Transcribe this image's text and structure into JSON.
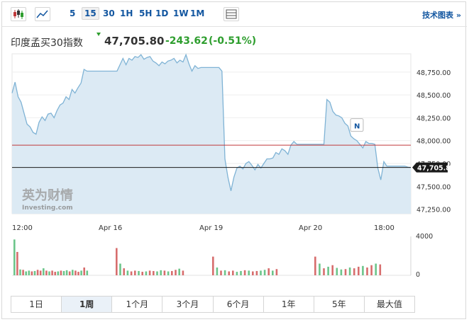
{
  "toolbar": {
    "icons": [
      "candlestick-icon",
      "line-chart-icon",
      "table-icon"
    ],
    "intervals": [
      "5",
      "15",
      "30",
      "1H",
      "5H",
      "1D",
      "1W",
      "1M"
    ],
    "active_interval": "15",
    "tech_link": "技术图表 »"
  },
  "header": {
    "name": "印度孟买30指数",
    "last": "47,705.80",
    "change": "-243.62",
    "change_pct": "(-0.51%)",
    "change_color": "#2e9e2e"
  },
  "ranges": [
    "1日",
    "1周",
    "1个月",
    "3个月",
    "6个月",
    "1年",
    "5年",
    "最大值"
  ],
  "active_range": "1周",
  "watermark": {
    "cn": "英为财情",
    "en": "Investing.com"
  },
  "colors": {
    "line": "#7fb3d5",
    "fill": "#dceaf4",
    "up_bar": "#6cc58a",
    "down_bar": "#d76d6d",
    "ref_line": "#c0393b",
    "price_tag": "#1a1a1a"
  },
  "chart_data": {
    "type": "area",
    "x_labels": [
      "12:00",
      "Apr 16",
      "Apr 19",
      "Apr 20",
      "18:00"
    ],
    "y_ticks": [
      "48,750.00",
      "48,500.00",
      "48,250.00",
      "48,000.00",
      "47,750.00",
      "47,500.00",
      "47,250.00"
    ],
    "ylim": [
      47200,
      48950
    ],
    "last_price": 47705.8,
    "last_price_label": "47,705.80",
    "ref_price": 47950,
    "event_marker": "N",
    "series": [
      {
        "values": [
          48520,
          48640,
          48480,
          48420,
          48300,
          48180,
          48150,
          48090,
          48070,
          48200,
          48260,
          48220,
          48290,
          48300,
          48250,
          48330,
          48390,
          48410,
          48480,
          48450,
          48560,
          48520,
          48580,
          48630,
          48780,
          48760,
          48760,
          48760,
          48760,
          48760,
          48760,
          48760,
          48760,
          48760,
          48760,
          48760,
          48830,
          48900,
          48830,
          48900,
          48880,
          48920,
          48910,
          48940,
          48890,
          48910,
          48920,
          48870,
          48850,
          48820,
          48860,
          48840,
          48870,
          48880,
          48900,
          48850,
          48880,
          48860,
          48940,
          48840,
          48760,
          48820,
          48790,
          48800,
          48800,
          48800,
          48800,
          48800,
          48800,
          48800,
          48760,
          47800,
          47600,
          47450,
          47600,
          47700,
          47720,
          47690,
          47750,
          47770,
          47730,
          47680,
          47740,
          47700,
          47750,
          47800,
          47800,
          47810,
          47870,
          47850,
          47910,
          47890,
          47850,
          47950,
          47990,
          47960,
          47960,
          47960,
          47960,
          47960,
          47960,
          47960,
          47960,
          47960,
          47960,
          48450,
          48420,
          48320,
          48280,
          48270,
          48250,
          48190,
          48160,
          48050,
          48020,
          48000,
          47960,
          47920,
          47990,
          47970,
          47970,
          47960,
          47700,
          47570,
          47770,
          47720,
          47720,
          47720,
          47720,
          47720,
          47720,
          47720,
          47710,
          47705.8
        ]
      }
    ],
    "volume_axis": [
      "4000",
      "0"
    ],
    "volume_bars": [
      0.92,
      0.6,
      0.15,
      0.14,
      0.1,
      0.12,
      0.1,
      0.11,
      0.14,
      0.12,
      0.18,
      0.12,
      0.1,
      0.12,
      0.09,
      0.1,
      0.12,
      0.11,
      0.13,
      0.1,
      0.14,
      0.12,
      0.09,
      0.12,
      0.2,
      0.12,
      0.7,
      0.3,
      0.18,
      0.12,
      0.1,
      0.12,
      0.11,
      0.09,
      0.1,
      0.12,
      0.11,
      0.1,
      0.13,
      0.12,
      0.1,
      0.11,
      0.14,
      0.17,
      0.12,
      0.48,
      0.2,
      0.12,
      0.13,
      0.1,
      0.12,
      0.09,
      0.11,
      0.13,
      0.12,
      0.1,
      0.11,
      0.12,
      0.14,
      0.18,
      0.12,
      0.16,
      0.48,
      0.3,
      0.18,
      0.22,
      0.26,
      0.19,
      0.15,
      0.16,
      0.2,
      0.18,
      0.22,
      0.24,
      0.2,
      0.26,
      0.3,
      0.28
    ],
    "volume_up": [
      1,
      0,
      1,
      0,
      1,
      1,
      0,
      1,
      0,
      0,
      1,
      0,
      1,
      0,
      0,
      1,
      0,
      1,
      1,
      0,
      1,
      0,
      0,
      1,
      0,
      1,
      0,
      1,
      0,
      1,
      0,
      0,
      1,
      0,
      1,
      0,
      0,
      1,
      1,
      0,
      1,
      0,
      0,
      1,
      0,
      0,
      1,
      0,
      1,
      0,
      0,
      1,
      1,
      0,
      1,
      0,
      0,
      1,
      1,
      0,
      1,
      0,
      0,
      1,
      0,
      1,
      0,
      1,
      1,
      0,
      1,
      0,
      0,
      1,
      0,
      0,
      1,
      0
    ]
  }
}
